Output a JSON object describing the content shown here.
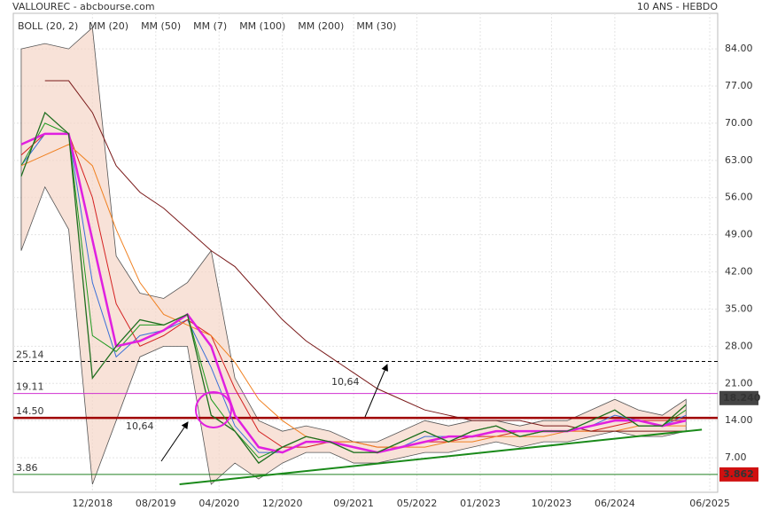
{
  "chart_data": {
    "type": "line",
    "title": "VALLOUREC - abcbourse.com",
    "subtitle": "10 ANS - HEBDO",
    "x": [
      "2018-03",
      "2018-06",
      "2018-09",
      "2018-12",
      "2019-03",
      "2019-06",
      "2019-09",
      "2019-12",
      "2020-03",
      "2020-06",
      "2020-09",
      "2020-12",
      "2021-03",
      "2021-06",
      "2021-09",
      "2021-12",
      "2022-03",
      "2022-06",
      "2022-09",
      "2022-12",
      "2023-03",
      "2023-06",
      "2023-09",
      "2023-12",
      "2024-03",
      "2024-06",
      "2024-09",
      "2024-12",
      "2025-03"
    ],
    "xlim": [
      "2018-02",
      "2025-07"
    ],
    "xticks": [
      {
        "value": "2018-12",
        "label": "12/2018"
      },
      {
        "value": "2019-08",
        "label": "08/2019"
      },
      {
        "value": "2020-04",
        "label": "04/2020"
      },
      {
        "value": "2020-12",
        "label": "12/2020"
      },
      {
        "value": "2021-09",
        "label": "09/2021"
      },
      {
        "value": "2022-05",
        "label": "05/2022"
      },
      {
        "value": "2023-01",
        "label": "01/2023"
      },
      {
        "value": "2023-10",
        "label": "10/2023"
      },
      {
        "value": "2024-06",
        "label": "06/2024"
      },
      {
        "value": "2025-06",
        "label": "06/2025"
      }
    ],
    "ylim": [
      0.5,
      90.7
    ],
    "yticks": [
      {
        "value": 7,
        "label": "7.00"
      },
      {
        "value": 14,
        "label": "14.00"
      },
      {
        "value": 21,
        "label": "21.00"
      },
      {
        "value": 28,
        "label": "28.00"
      },
      {
        "value": 35,
        "label": "35.00"
      },
      {
        "value": 42,
        "label": "42.00"
      },
      {
        "value": 49,
        "label": "49.00"
      },
      {
        "value": 56,
        "label": "56.00"
      },
      {
        "value": 63,
        "label": "63.00"
      },
      {
        "value": 70,
        "label": "70.00"
      },
      {
        "value": 77,
        "label": "77.00"
      },
      {
        "value": 84,
        "label": "84.00"
      }
    ],
    "grid": true,
    "price": {
      "color": "#1f6e1f",
      "values": [
        60,
        72,
        68,
        22,
        28,
        33,
        32,
        34,
        15,
        12,
        6,
        9,
        11,
        10,
        8,
        8,
        10,
        12,
        10,
        12,
        13,
        11,
        12,
        12,
        14,
        16,
        13,
        13,
        17
      ]
    },
    "bollinger": {
      "name": "BOLL (20, 2)",
      "color": "#f5d5c8",
      "line_color": "#555555",
      "upper": [
        84,
        85,
        84,
        88,
        45,
        38,
        37,
        40,
        46,
        22,
        14,
        12,
        13,
        12,
        10,
        10,
        12,
        14,
        13,
        14,
        14,
        13,
        14,
        14,
        16,
        18,
        16,
        15,
        18
      ],
      "lower": [
        46,
        58,
        50,
        2,
        14,
        26,
        28,
        28,
        2,
        6,
        3,
        6,
        8,
        8,
        6,
        6,
        7,
        8,
        8,
        9,
        10,
        9,
        10,
        10,
        11,
        12,
        11,
        11,
        12
      ]
    },
    "series": [
      {
        "name": "MM (20)",
        "color": "#3b6fd8",
        "values": [
          62,
          68,
          68,
          40,
          26,
          30,
          31,
          33,
          24,
          13,
          8,
          8,
          10,
          10,
          9,
          8,
          9,
          11,
          11,
          11,
          12,
          12,
          12,
          12,
          13,
          15,
          14,
          13,
          15
        ]
      },
      {
        "name": "MM (50)",
        "color": "#d42020",
        "values": [
          64,
          68,
          68,
          56,
          36,
          28,
          30,
          33,
          30,
          20,
          12,
          9,
          9,
          10,
          10,
          9,
          9,
          10,
          10,
          11,
          11,
          12,
          12,
          12,
          12,
          13,
          14,
          14,
          14
        ]
      },
      {
        "name": "MM (7)",
        "color": "#1e9a1e",
        "values": [
          62,
          70,
          68,
          30,
          27,
          32,
          32,
          34,
          18,
          12,
          7,
          9,
          11,
          10,
          8,
          8,
          10,
          12,
          10,
          12,
          13,
          11,
          12,
          12,
          14,
          16,
          13,
          13,
          16
        ]
      },
      {
        "name": "MM (100)",
        "color": "#f08020",
        "values": [
          62,
          64,
          66,
          62,
          50,
          40,
          34,
          32,
          30,
          25,
          18,
          14,
          11,
          10,
          10,
          9,
          9,
          9,
          10,
          10,
          11,
          11,
          11,
          12,
          12,
          12,
          13,
          13,
          13
        ]
      },
      {
        "name": "MM (200)",
        "color": "#7a1a1a",
        "values": [
          null,
          78,
          78,
          72,
          62,
          57,
          54,
          50,
          46,
          43,
          38,
          33,
          29,
          26,
          23,
          20,
          18,
          16,
          15,
          14,
          14,
          14,
          13,
          13,
          12,
          12,
          12,
          12,
          12
        ]
      },
      {
        "name": "MM (30)",
        "color": "#e020e0",
        "values": [
          66,
          68,
          68,
          48,
          28,
          29,
          31,
          34,
          28,
          15,
          9,
          8,
          10,
          10,
          9,
          8,
          9,
          10,
          11,
          11,
          12,
          12,
          12,
          12,
          13,
          14,
          14,
          13,
          14
        ]
      }
    ],
    "levels": [
      {
        "value": 25.14,
        "label": "25.14",
        "color": "#000000",
        "dashed": true
      },
      {
        "value": 19.11,
        "label": "19.11",
        "color": "#d030d0",
        "dashed": false
      },
      {
        "value": 14.5,
        "label": "14.50",
        "color": "#a00000",
        "dashed": false
      },
      {
        "value": 3.86,
        "label": "3.86",
        "color": "#208020",
        "dashed": false
      }
    ],
    "trend_line": {
      "x": [
        "2019-11",
        "2025-05"
      ],
      "y": [
        2,
        12.3
      ],
      "color": "#1a8a1a"
    },
    "markers": [
      {
        "value": 18.24,
        "label": "18.240",
        "color": "#444444"
      },
      {
        "value": 3.862,
        "label": "3.862",
        "color": "#d01010"
      }
    ],
    "annotations": [
      "10,64",
      "10,64"
    ]
  }
}
